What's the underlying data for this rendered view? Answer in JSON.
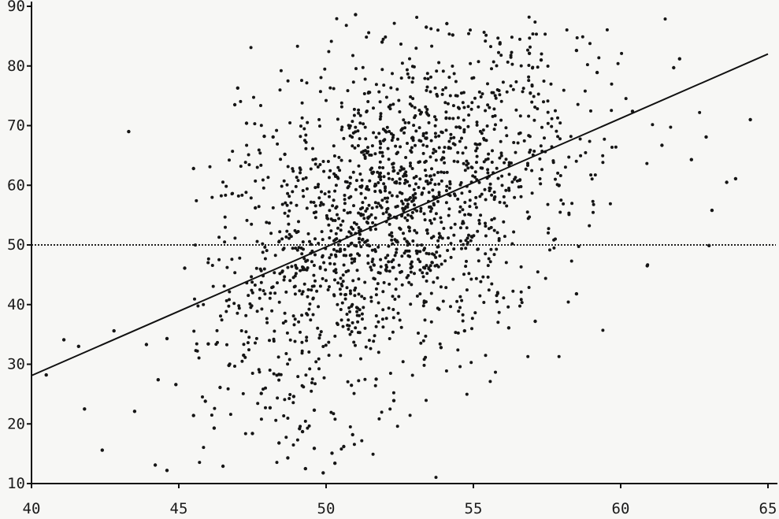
{
  "chart_data": {
    "type": "scatter",
    "title": "",
    "xlabel": "",
    "ylabel": "",
    "xlim": [
      40,
      65
    ],
    "ylim": [
      10,
      90
    ],
    "x_ticks": [
      40,
      45,
      50,
      55,
      60,
      65
    ],
    "y_ticks": [
      10,
      20,
      30,
      40,
      50,
      60,
      70,
      80,
      90
    ],
    "x_tick_labels": [
      "40",
      "45",
      "50",
      "55",
      "60",
      "65"
    ],
    "y_tick_labels": [
      "10",
      "20",
      "30",
      "40",
      "50",
      "60",
      "70",
      "80",
      "90"
    ],
    "grid": false,
    "legend": "none",
    "fit_line": {
      "x": [
        40,
        65
      ],
      "y": [
        28.1,
        82.0
      ]
    },
    "reference_line": {
      "y": 50,
      "style": "dotted"
    },
    "approx_point_count": 1700,
    "points": [
      [
        40.5,
        28.2
      ],
      [
        41.1,
        34.1
      ],
      [
        41.6,
        33.0
      ],
      [
        41.8,
        22.5
      ],
      [
        42.4,
        15.6
      ],
      [
        42.8,
        35.6
      ],
      [
        43.3,
        69.0
      ],
      [
        43.5,
        22.1
      ],
      [
        43.9,
        33.3
      ],
      [
        44.2,
        13.1
      ],
      [
        44.3,
        27.4
      ],
      [
        44.6,
        12.2
      ],
      [
        44.6,
        34.3
      ],
      [
        44.9,
        26.6
      ],
      [
        45.2,
        46.1
      ],
      [
        45.5,
        62.8
      ],
      [
        46.0,
        33.4
      ],
      [
        46.5,
        12.9
      ],
      [
        46.9,
        73.5
      ],
      [
        47.0,
        76.3
      ],
      [
        47.3,
        70.4
      ],
      [
        47.6,
        56.2
      ],
      [
        47.9,
        68.2
      ],
      [
        48.2,
        68.1
      ],
      [
        48.6,
        65.2
      ],
      [
        45.5,
        21.4
      ],
      [
        45.9,
        23.8
      ],
      [
        46.2,
        19.3
      ],
      [
        46.4,
        26.1
      ],
      [
        46.7,
        29.8
      ],
      [
        47.2,
        31.5
      ],
      [
        47.5,
        18.4
      ],
      [
        47.8,
        25.1
      ],
      [
        48.1,
        22.7
      ],
      [
        48.4,
        16.8
      ],
      [
        48.7,
        14.3
      ],
      [
        49.1,
        19.2
      ],
      [
        49.3,
        12.5
      ],
      [
        49.6,
        15.9
      ],
      [
        49.9,
        11.8
      ],
      [
        50.3,
        13.4
      ],
      [
        50.6,
        16.2
      ],
      [
        51.0,
        88.6
      ],
      [
        51.9,
        84.0
      ],
      [
        53.4,
        86.5
      ],
      [
        54.1,
        87.1
      ],
      [
        54.3,
        85.2
      ],
      [
        55.9,
        83.7
      ],
      [
        56.9,
        82.1
      ],
      [
        57.3,
        81.0
      ],
      [
        58.5,
        82.6
      ],
      [
        59.2,
        78.9
      ],
      [
        60.4,
        72.4
      ],
      [
        61.4,
        66.7
      ],
      [
        61.8,
        79.7
      ],
      [
        62.0,
        81.2
      ],
      [
        62.4,
        64.3
      ],
      [
        62.9,
        68.1
      ],
      [
        63.1,
        55.8
      ],
      [
        63.6,
        60.5
      ],
      [
        63.9,
        61.1
      ],
      [
        64.4,
        71.0
      ],
      [
        63.0,
        49.9
      ],
      [
        60.9,
        46.5
      ],
      [
        58.5,
        41.8
      ],
      [
        57.1,
        37.2
      ],
      [
        56.2,
        36.1
      ],
      [
        55.8,
        40.5
      ],
      [
        54.7,
        35.6
      ],
      [
        53.9,
        32.8
      ],
      [
        52.3,
        23.9
      ],
      [
        51.7,
        27.5
      ],
      [
        50.9,
        18.2
      ],
      [
        50.2,
        15.1
      ],
      [
        49.6,
        22.3
      ],
      [
        49.2,
        18.7
      ],
      [
        48.9,
        24.6
      ],
      [
        48.4,
        28.3
      ]
    ]
  }
}
